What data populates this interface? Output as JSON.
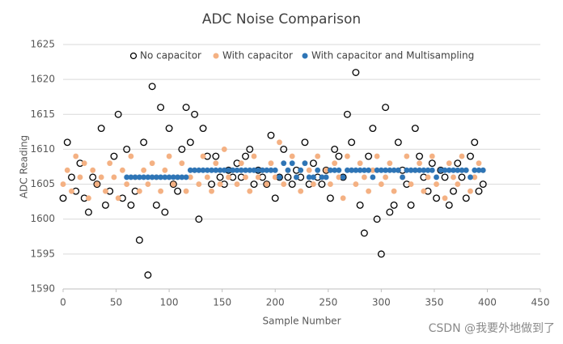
{
  "chart_data": {
    "type": "scatter",
    "title": "ADC Noise Comparison",
    "x_label": "Sample Number",
    "y_label": "ADC Reading",
    "xlim": [
      0,
      450
    ],
    "xticks": [
      0,
      50,
      100,
      150,
      200,
      250,
      300,
      350,
      400,
      450
    ],
    "ylim": [
      1590,
      1625
    ],
    "yticks": [
      1590,
      1595,
      1600,
      1605,
      1610,
      1615,
      1620,
      1625
    ],
    "grid": true,
    "legend": "top",
    "watermark": "CSDN @我要外地做到了",
    "x": [
      0,
      4,
      8,
      12,
      16,
      20,
      24,
      28,
      32,
      36,
      40,
      44,
      48,
      52,
      56,
      60,
      64,
      68,
      72,
      76,
      80,
      84,
      88,
      92,
      96,
      100,
      104,
      108,
      112,
      116,
      120,
      124,
      128,
      132,
      136,
      140,
      144,
      148,
      152,
      156,
      160,
      164,
      168,
      172,
      176,
      180,
      184,
      188,
      192,
      196,
      200,
      204,
      208,
      212,
      216,
      220,
      224,
      228,
      232,
      236,
      240,
      244,
      248,
      252,
      256,
      260,
      264,
      268,
      272,
      276,
      280,
      284,
      288,
      292,
      296,
      300,
      304,
      308,
      312,
      316,
      320,
      324,
      328,
      332,
      336,
      340,
      344,
      348,
      352,
      356,
      360,
      364,
      368,
      372,
      376,
      380,
      384,
      388,
      392,
      396
    ],
    "series": [
      {
        "name": "No capacitor",
        "color": "#000000",
        "marker": "open",
        "values": [
          1603,
          1611,
          1606,
          1604,
          1608,
          1603,
          1601,
          1606,
          1605,
          1613,
          1602,
          1604,
          1609,
          1615,
          1603,
          1610,
          1602,
          1604,
          1597,
          1611,
          1592,
          1619,
          1602,
          1616,
          1601,
          1613,
          1605,
          1604,
          1610,
          1616,
          1611,
          1615,
          1600,
          1613,
          1609,
          1605,
          1609,
          1606,
          1605,
          1607,
          1606,
          1608,
          1606,
          1609,
          1610,
          1605,
          1607,
          1606,
          1605,
          1612,
          1603,
          1606,
          1610,
          1606,
          1605,
          1607,
          1606,
          1611,
          1605,
          1608,
          1606,
          1605,
          1607,
          1603,
          1610,
          1609,
          1606,
          1615,
          1611,
          1621,
          1602,
          1598,
          1609,
          1613,
          1600,
          1595,
          1616,
          1601,
          1602,
          1611,
          1607,
          1605,
          1602,
          1613,
          1609,
          1606,
          1604,
          1608,
          1603,
          1607,
          1606,
          1602,
          1604,
          1608,
          1606,
          1603,
          1609,
          1611,
          1604,
          1605
        ]
      },
      {
        "name": "With capacitor",
        "color": "#f4b183",
        "marker": "filled",
        "values": [
          1605,
          1607,
          1604,
          1609,
          1606,
          1608,
          1603,
          1607,
          1605,
          1606,
          1604,
          1608,
          1606,
          1603,
          1607,
          1605,
          1609,
          1606,
          1604,
          1607,
          1605,
          1608,
          1606,
          1604,
          1607,
          1609,
          1605,
          1606,
          1608,
          1604,
          1606,
          1607,
          1605,
          1609,
          1606,
          1604,
          1608,
          1605,
          1610,
          1606,
          1607,
          1605,
          1608,
          1606,
          1604,
          1609,
          1606,
          1607,
          1605,
          1608,
          1606,
          1611,
          1605,
          1607,
          1609,
          1606,
          1604,
          1608,
          1607,
          1605,
          1609,
          1606,
          1607,
          1605,
          1608,
          1606,
          1603,
          1609,
          1607,
          1605,
          1608,
          1606,
          1604,
          1607,
          1609,
          1605,
          1606,
          1608,
          1604,
          1607,
          1606,
          1609,
          1605,
          1607,
          1608,
          1604,
          1606,
          1609,
          1605,
          1607,
          1603,
          1608,
          1606,
          1605,
          1609,
          1607,
          1604,
          1606,
          1608,
          1607
        ]
      },
      {
        "name": "With capacitor and Multisampling",
        "color": "#2e75b6",
        "marker": "filled",
        "values": [
          null,
          null,
          null,
          null,
          null,
          null,
          null,
          null,
          null,
          null,
          null,
          null,
          null,
          null,
          null,
          1606,
          1606,
          1606,
          1606,
          1606,
          1606,
          1606,
          1606,
          1606,
          1606,
          1606,
          1606,
          1606,
          1606,
          1606,
          1607,
          1607,
          1607,
          1607,
          1607,
          1607,
          1607,
          1607,
          1607,
          1607,
          1607,
          1607,
          1607,
          1607,
          1607,
          1607,
          1607,
          1607,
          1607,
          1607,
          1607,
          1606,
          1608,
          1607,
          1608,
          1606,
          1607,
          1608,
          1606,
          1606,
          1607,
          1606,
          1606,
          1607,
          1607,
          1607,
          1606,
          1607,
          1607,
          1607,
          1607,
          1607,
          1607,
          1606,
          1607,
          1607,
          1607,
          1607,
          1607,
          1607,
          1606,
          1607,
          1607,
          1607,
          1607,
          1607,
          1607,
          1607,
          1606,
          1607,
          1607,
          1607,
          1607,
          1607,
          1607,
          1607,
          1606,
          1607,
          1607,
          1607
        ]
      }
    ]
  }
}
